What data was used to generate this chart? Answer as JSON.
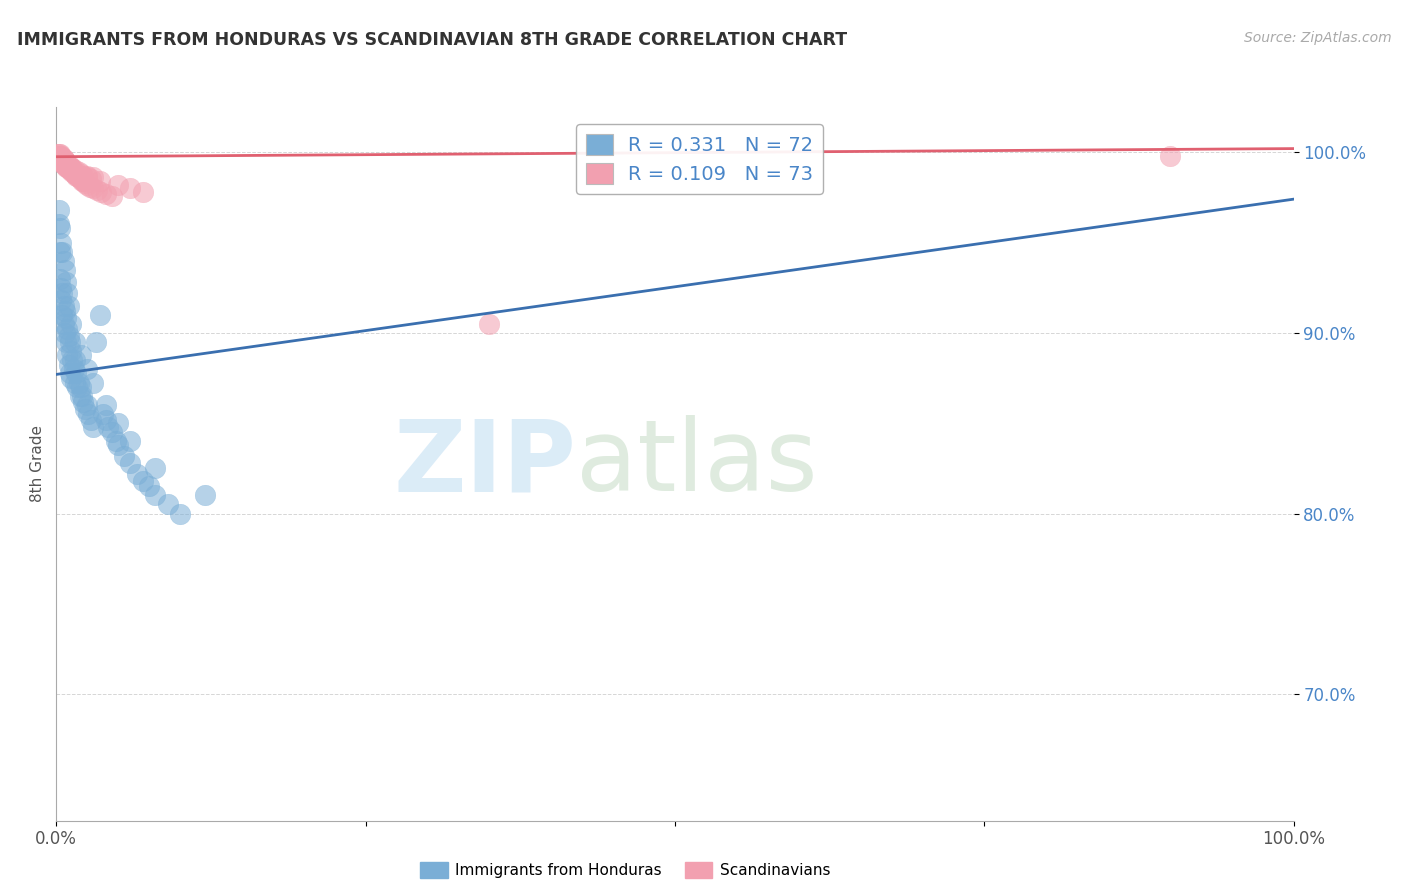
{
  "title": "IMMIGRANTS FROM HONDURAS VS SCANDINAVIAN 8TH GRADE CORRELATION CHART",
  "source": "Source: ZipAtlas.com",
  "ylabel": "8th Grade",
  "xlim": [
    0.0,
    1.0
  ],
  "ylim": [
    0.63,
    1.025
  ],
  "ytick_positions": [
    0.7,
    0.8,
    0.9,
    1.0
  ],
  "ytick_labels": [
    "70.0%",
    "80.0%",
    "90.0%",
    "100.0%"
  ],
  "xtick_positions": [
    0.0,
    0.25,
    0.5,
    0.75,
    1.0
  ],
  "xtick_labels": [
    "0.0%",
    "",
    "",
    "",
    "100.0%"
  ],
  "blue_color": "#7aaed6",
  "pink_color": "#f2a0b0",
  "blue_line_color": "#3a6faf",
  "pink_line_color": "#e06070",
  "tick_color": "#4a86c8",
  "background_color": "#ffffff",
  "grid_color": "#cccccc",
  "title_fontsize": 12.5,
  "source_fontsize": 10,
  "tick_fontsize": 12,
  "ylabel_fontsize": 11,
  "blue_line_x0": 0.0,
  "blue_line_y0": 0.877,
  "blue_line_x1": 1.0,
  "blue_line_y1": 0.974,
  "pink_line_x0": 0.0,
  "pink_line_y0": 0.9975,
  "pink_line_x1": 1.0,
  "pink_line_y1": 1.002,
  "blue_scatter_x": [
    0.002,
    0.003,
    0.003,
    0.004,
    0.004,
    0.005,
    0.005,
    0.006,
    0.006,
    0.007,
    0.007,
    0.008,
    0.008,
    0.009,
    0.009,
    0.01,
    0.01,
    0.011,
    0.011,
    0.012,
    0.012,
    0.013,
    0.014,
    0.015,
    0.015,
    0.016,
    0.017,
    0.018,
    0.019,
    0.02,
    0.021,
    0.022,
    0.023,
    0.025,
    0.026,
    0.028,
    0.03,
    0.032,
    0.035,
    0.038,
    0.04,
    0.042,
    0.045,
    0.048,
    0.05,
    0.055,
    0.06,
    0.065,
    0.07,
    0.075,
    0.08,
    0.09,
    0.1,
    0.002,
    0.003,
    0.004,
    0.005,
    0.006,
    0.007,
    0.008,
    0.009,
    0.01,
    0.012,
    0.015,
    0.02,
    0.025,
    0.03,
    0.04,
    0.05,
    0.06,
    0.08,
    0.12
  ],
  "blue_scatter_y": [
    0.96,
    0.945,
    0.93,
    0.925,
    0.918,
    0.922,
    0.91,
    0.915,
    0.905,
    0.912,
    0.9,
    0.908,
    0.895,
    0.902,
    0.888,
    0.898,
    0.882,
    0.895,
    0.878,
    0.89,
    0.875,
    0.885,
    0.88,
    0.885,
    0.872,
    0.878,
    0.87,
    0.872,
    0.865,
    0.87,
    0.865,
    0.862,
    0.858,
    0.86,
    0.855,
    0.852,
    0.848,
    0.895,
    0.91,
    0.855,
    0.852,
    0.848,
    0.845,
    0.84,
    0.838,
    0.832,
    0.828,
    0.822,
    0.818,
    0.815,
    0.81,
    0.805,
    0.8,
    0.968,
    0.958,
    0.95,
    0.945,
    0.94,
    0.935,
    0.928,
    0.922,
    0.915,
    0.905,
    0.895,
    0.888,
    0.88,
    0.872,
    0.86,
    0.85,
    0.84,
    0.825,
    0.81
  ],
  "pink_scatter_x": [
    0.001,
    0.002,
    0.002,
    0.003,
    0.003,
    0.004,
    0.004,
    0.005,
    0.005,
    0.006,
    0.006,
    0.007,
    0.007,
    0.008,
    0.008,
    0.009,
    0.009,
    0.01,
    0.01,
    0.011,
    0.012,
    0.013,
    0.014,
    0.015,
    0.015,
    0.016,
    0.017,
    0.018,
    0.019,
    0.02,
    0.021,
    0.022,
    0.023,
    0.025,
    0.027,
    0.03,
    0.033,
    0.036,
    0.04,
    0.045,
    0.001,
    0.002,
    0.003,
    0.004,
    0.005,
    0.006,
    0.007,
    0.008,
    0.009,
    0.01,
    0.011,
    0.012,
    0.013,
    0.015,
    0.018,
    0.02,
    0.022,
    0.025,
    0.028,
    0.003,
    0.004,
    0.005,
    0.006,
    0.007,
    0.008,
    0.35,
    0.025,
    0.03,
    0.035,
    0.9,
    0.05,
    0.06,
    0.07
  ],
  "pink_scatter_y": [
    0.998,
    0.998,
    0.997,
    0.997,
    0.996,
    0.996,
    0.995,
    0.995,
    0.994,
    0.994,
    0.994,
    0.993,
    0.993,
    0.993,
    0.992,
    0.992,
    0.992,
    0.991,
    0.991,
    0.99,
    0.99,
    0.989,
    0.989,
    0.988,
    0.988,
    0.987,
    0.987,
    0.986,
    0.986,
    0.985,
    0.984,
    0.984,
    0.983,
    0.982,
    0.981,
    0.98,
    0.979,
    0.978,
    0.977,
    0.976,
    0.999,
    0.999,
    0.998,
    0.997,
    0.996,
    0.996,
    0.995,
    0.994,
    0.993,
    0.993,
    0.992,
    0.991,
    0.991,
    0.99,
    0.989,
    0.988,
    0.987,
    0.986,
    0.985,
    0.999,
    0.998,
    0.997,
    0.996,
    0.995,
    0.994,
    0.905,
    0.987,
    0.986,
    0.984,
    0.998,
    0.982,
    0.98,
    0.978
  ]
}
